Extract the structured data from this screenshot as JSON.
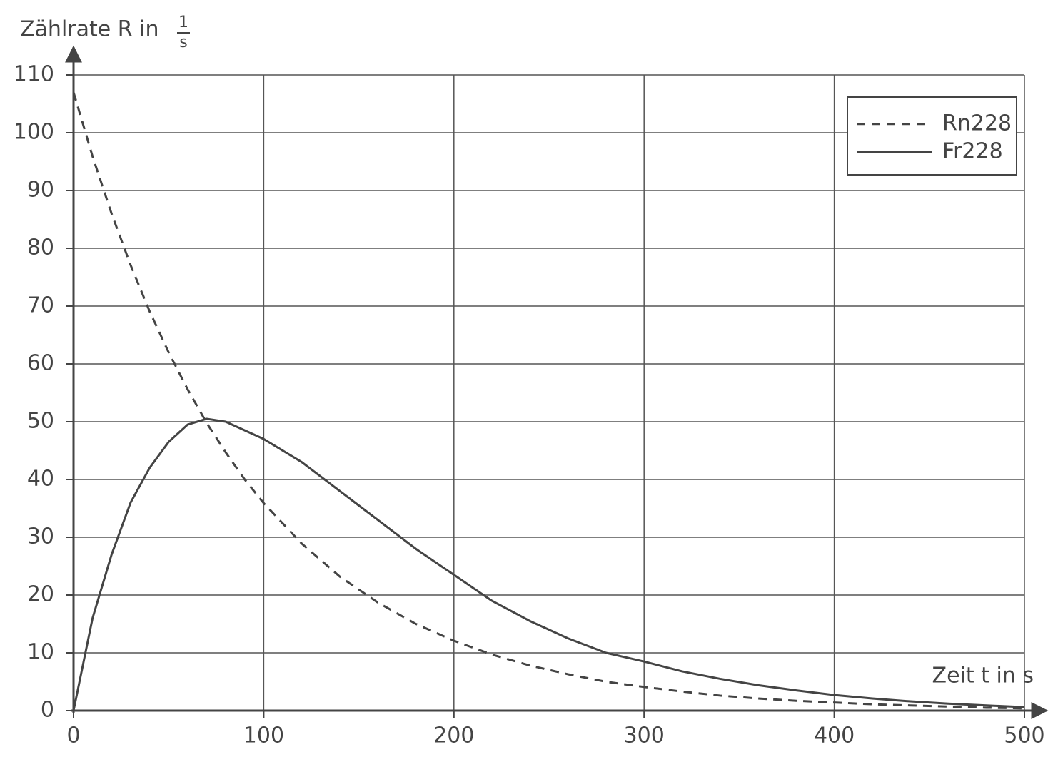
{
  "chart_data": {
    "type": "line",
    "y_label": "Zählrate R in",
    "y_label_unit": {
      "numerator": "1",
      "denominator": "s"
    },
    "x_label": "Zeit t in s",
    "x": [
      0,
      10,
      20,
      30,
      40,
      50,
      60,
      70,
      80,
      90,
      100,
      120,
      140,
      160,
      180,
      200,
      220,
      240,
      260,
      280,
      300,
      320,
      340,
      360,
      380,
      400,
      420,
      440,
      460,
      480,
      500
    ],
    "series": [
      {
        "name": "Rn228",
        "color": "#444444",
        "dash": "dashed",
        "values": [
          107,
          95.9,
          86,
          77.1,
          69.1,
          62,
          55.6,
          49.8,
          44.7,
          40,
          35.9,
          28.9,
          23.2,
          18.7,
          15,
          12.1,
          9.7,
          7.8,
          6.3,
          5,
          4.1,
          3.3,
          2.6,
          2.1,
          1.7,
          1.4,
          1.1,
          0.9,
          0.7,
          0.5,
          0.4
        ]
      },
      {
        "name": "Fr228",
        "color": "#444444",
        "dash": "solid",
        "values": [
          0,
          16,
          27,
          36,
          42,
          46.5,
          49.5,
          50.5,
          50,
          48.5,
          47,
          43,
          38,
          33,
          28,
          23.5,
          19,
          15.5,
          12.5,
          10,
          8.5,
          6.8,
          5.5,
          4.4,
          3.5,
          2.7,
          2.1,
          1.6,
          1.2,
          0.9,
          0.6
        ]
      }
    ],
    "xlim": [
      0,
      500
    ],
    "xticks": [
      0,
      100,
      200,
      300,
      400,
      500
    ],
    "ylim": [
      0,
      110
    ],
    "yticks": [
      0,
      10,
      20,
      30,
      40,
      50,
      60,
      70,
      80,
      90,
      100,
      110
    ],
    "grid": true,
    "legend": "upper right"
  }
}
